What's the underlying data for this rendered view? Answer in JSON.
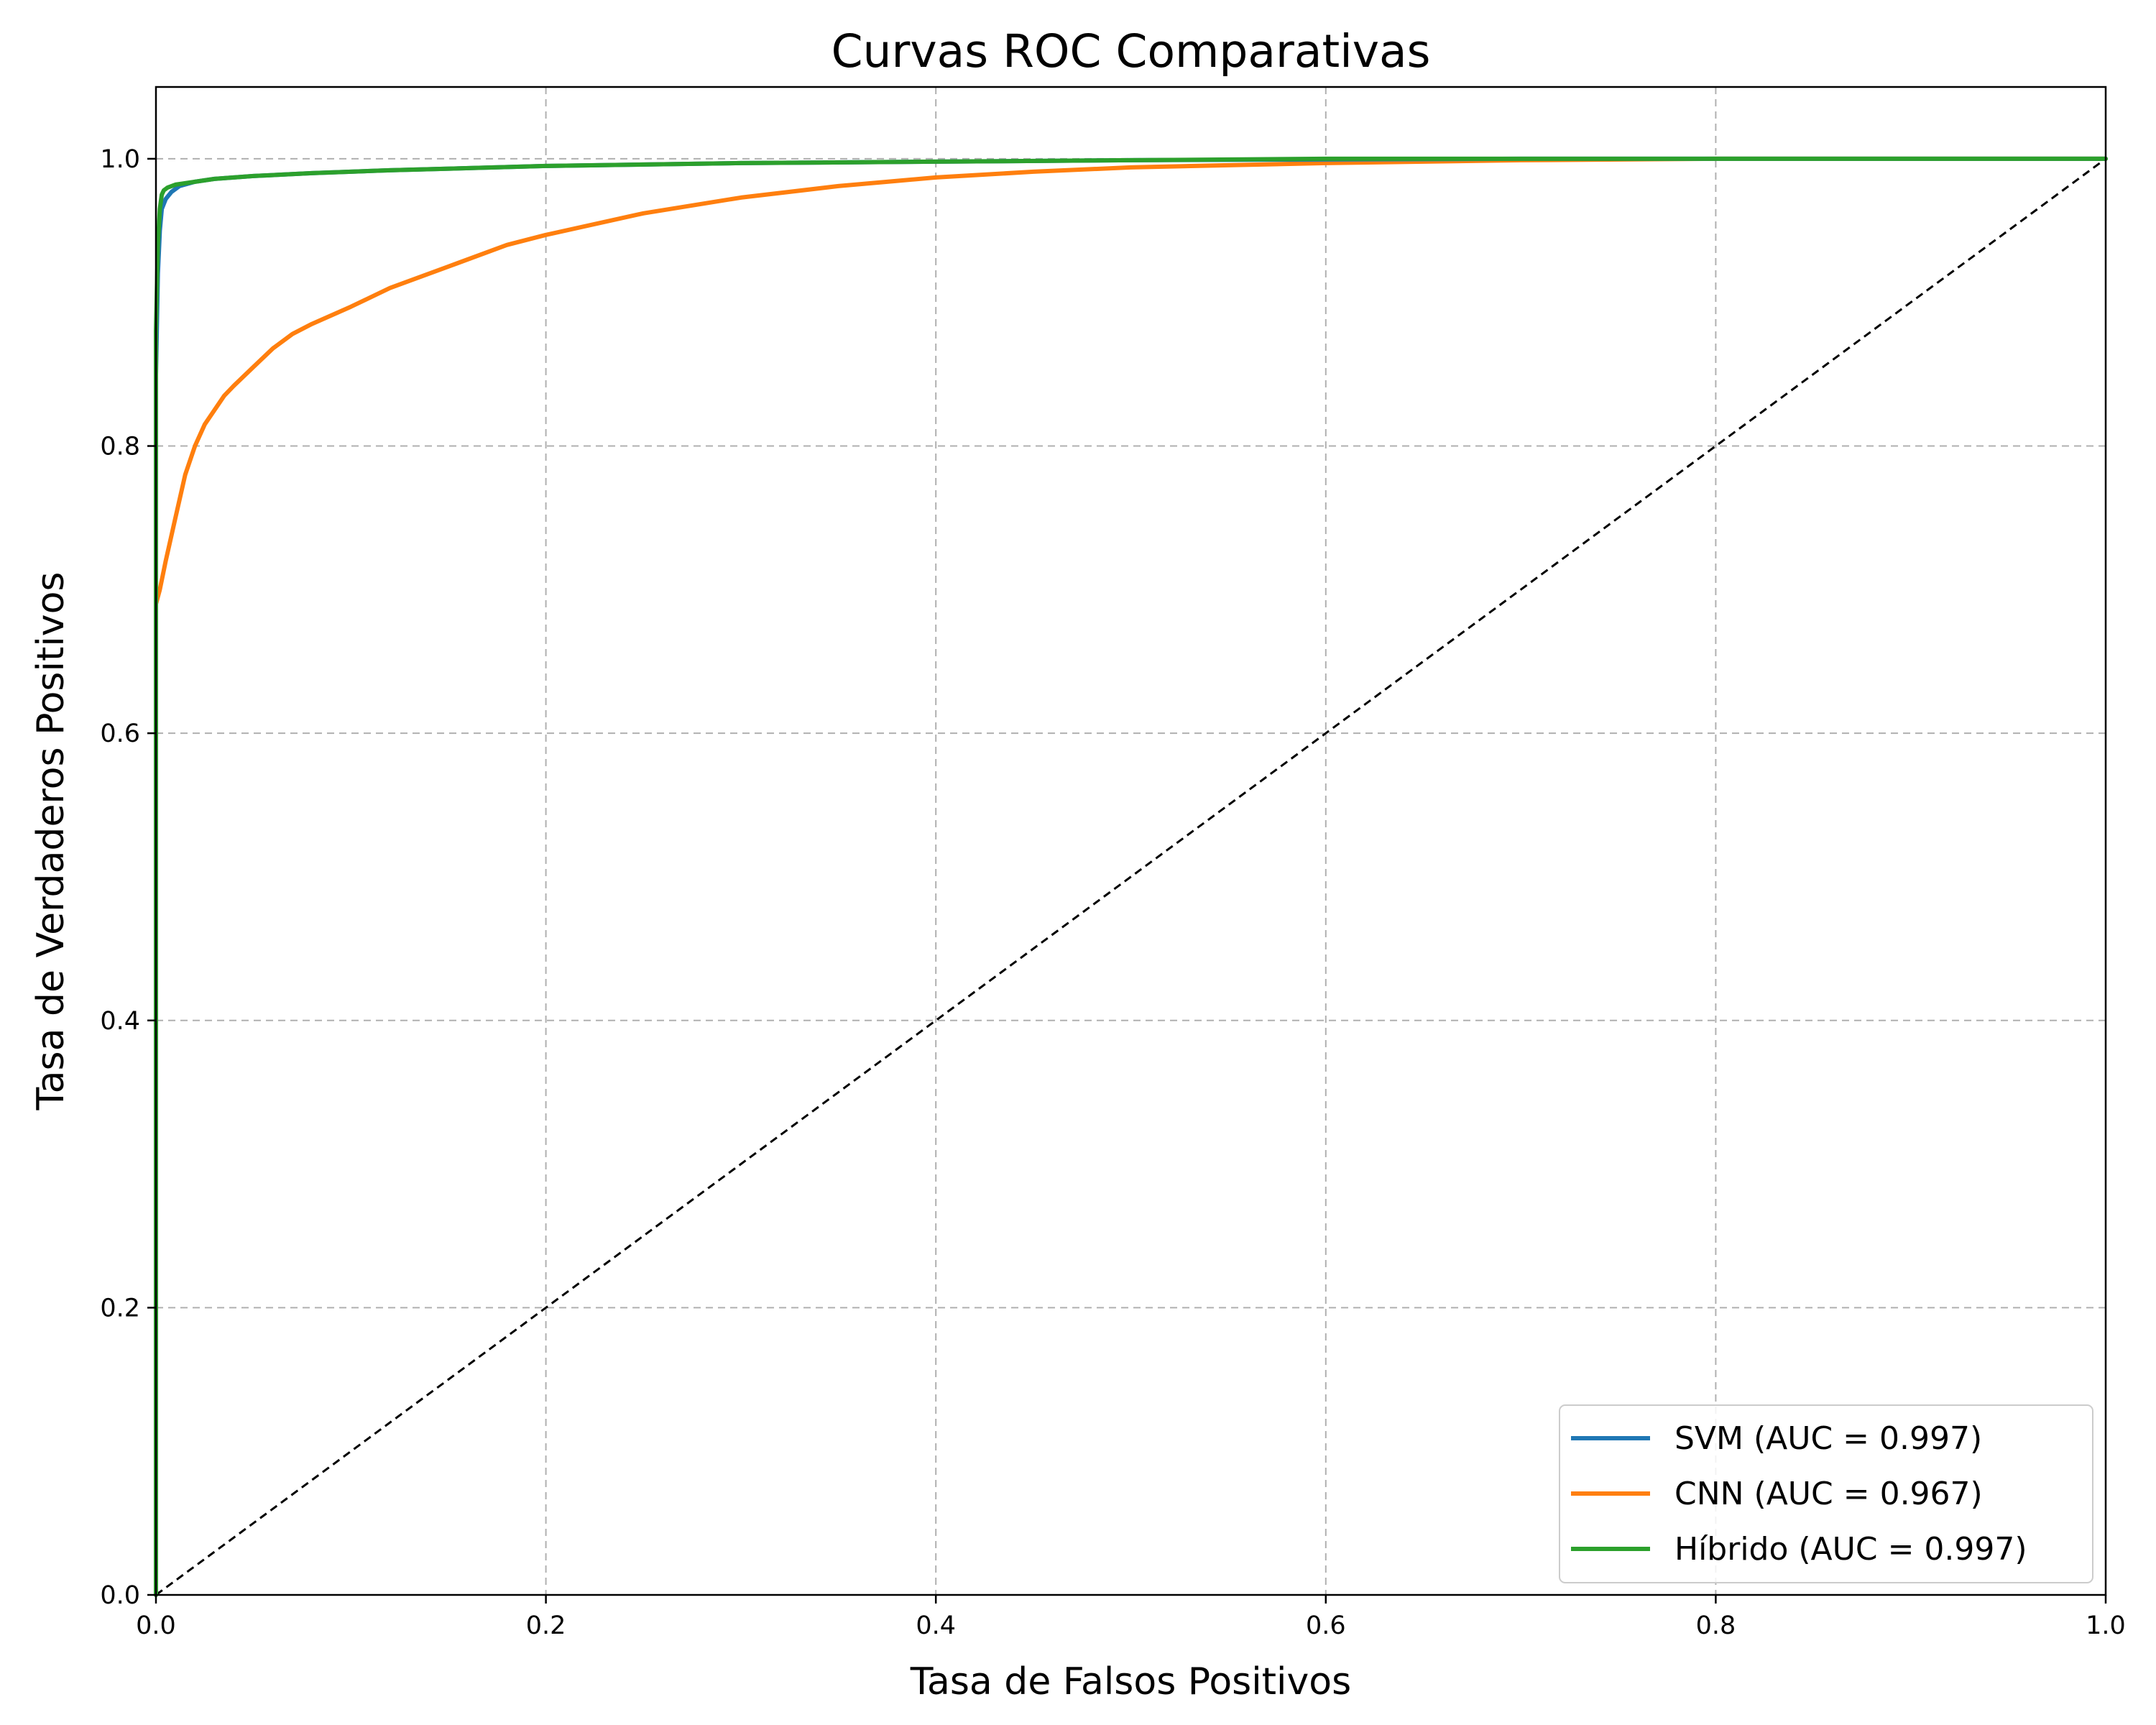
{
  "chart_data": {
    "type": "line",
    "title": "Curvas ROC Comparativas",
    "xlabel": "Tasa de Falsos Positivos",
    "ylabel": "Tasa de Verdaderos Positivos",
    "xlim": [
      0.0,
      1.0
    ],
    "ylim": [
      0.0,
      1.05
    ],
    "xticks": [
      "0.0",
      "0.2",
      "0.4",
      "0.6",
      "0.8",
      "1.0"
    ],
    "yticks": [
      "0.0",
      "0.2",
      "0.4",
      "0.6",
      "0.8",
      "1.0"
    ],
    "grid": true,
    "legend_position": "lower-right",
    "series": [
      {
        "name": "SVM (AUC = 0.997)",
        "color": "#1f77b4",
        "x": [
          0.0,
          0.0,
          0.001,
          0.002,
          0.003,
          0.005,
          0.008,
          0.012,
          0.02,
          0.03,
          0.05,
          0.08,
          0.12,
          0.2,
          0.3,
          0.4,
          0.5,
          0.6,
          0.7,
          0.8,
          0.9,
          1.0
        ],
        "y": [
          0.0,
          0.85,
          0.92,
          0.95,
          0.965,
          0.972,
          0.977,
          0.981,
          0.984,
          0.986,
          0.988,
          0.99,
          0.992,
          0.995,
          0.997,
          0.998,
          0.999,
          0.9995,
          1.0,
          1.0,
          1.0,
          1.0
        ]
      },
      {
        "name": "CNN (AUC = 0.967)",
        "color": "#ff7f0e",
        "x": [
          0.0,
          0.0,
          0.002,
          0.005,
          0.01,
          0.015,
          0.02,
          0.025,
          0.03,
          0.035,
          0.04,
          0.05,
          0.06,
          0.07,
          0.08,
          0.1,
          0.12,
          0.15,
          0.18,
          0.2,
          0.25,
          0.3,
          0.35,
          0.4,
          0.45,
          0.5,
          0.6,
          0.7,
          0.8,
          0.9,
          1.0
        ],
        "y": [
          0.0,
          0.69,
          0.7,
          0.72,
          0.75,
          0.78,
          0.8,
          0.815,
          0.825,
          0.835,
          0.842,
          0.855,
          0.868,
          0.878,
          0.885,
          0.897,
          0.91,
          0.925,
          0.94,
          0.947,
          0.962,
          0.973,
          0.981,
          0.987,
          0.991,
          0.994,
          0.997,
          0.999,
          1.0,
          1.0,
          1.0
        ]
      },
      {
        "name": "Híbrido (AUC = 0.997)",
        "color": "#2ca02c",
        "x": [
          0.0,
          0.0,
          0.001,
          0.002,
          0.003,
          0.004,
          0.006,
          0.01,
          0.02,
          0.03,
          0.05,
          0.08,
          0.12,
          0.2,
          0.3,
          0.4,
          0.5,
          0.6,
          0.7,
          0.8,
          0.9,
          1.0
        ],
        "y": [
          0.0,
          0.88,
          0.94,
          0.965,
          0.975,
          0.978,
          0.98,
          0.982,
          0.984,
          0.986,
          0.988,
          0.99,
          0.992,
          0.995,
          0.997,
          0.998,
          0.999,
          1.0,
          1.0,
          1.0,
          1.0,
          1.0
        ]
      }
    ],
    "reference_line": {
      "x": [
        0.0,
        1.0
      ],
      "y": [
        0.0,
        1.0
      ],
      "color": "#000000",
      "style": "dashed"
    }
  }
}
